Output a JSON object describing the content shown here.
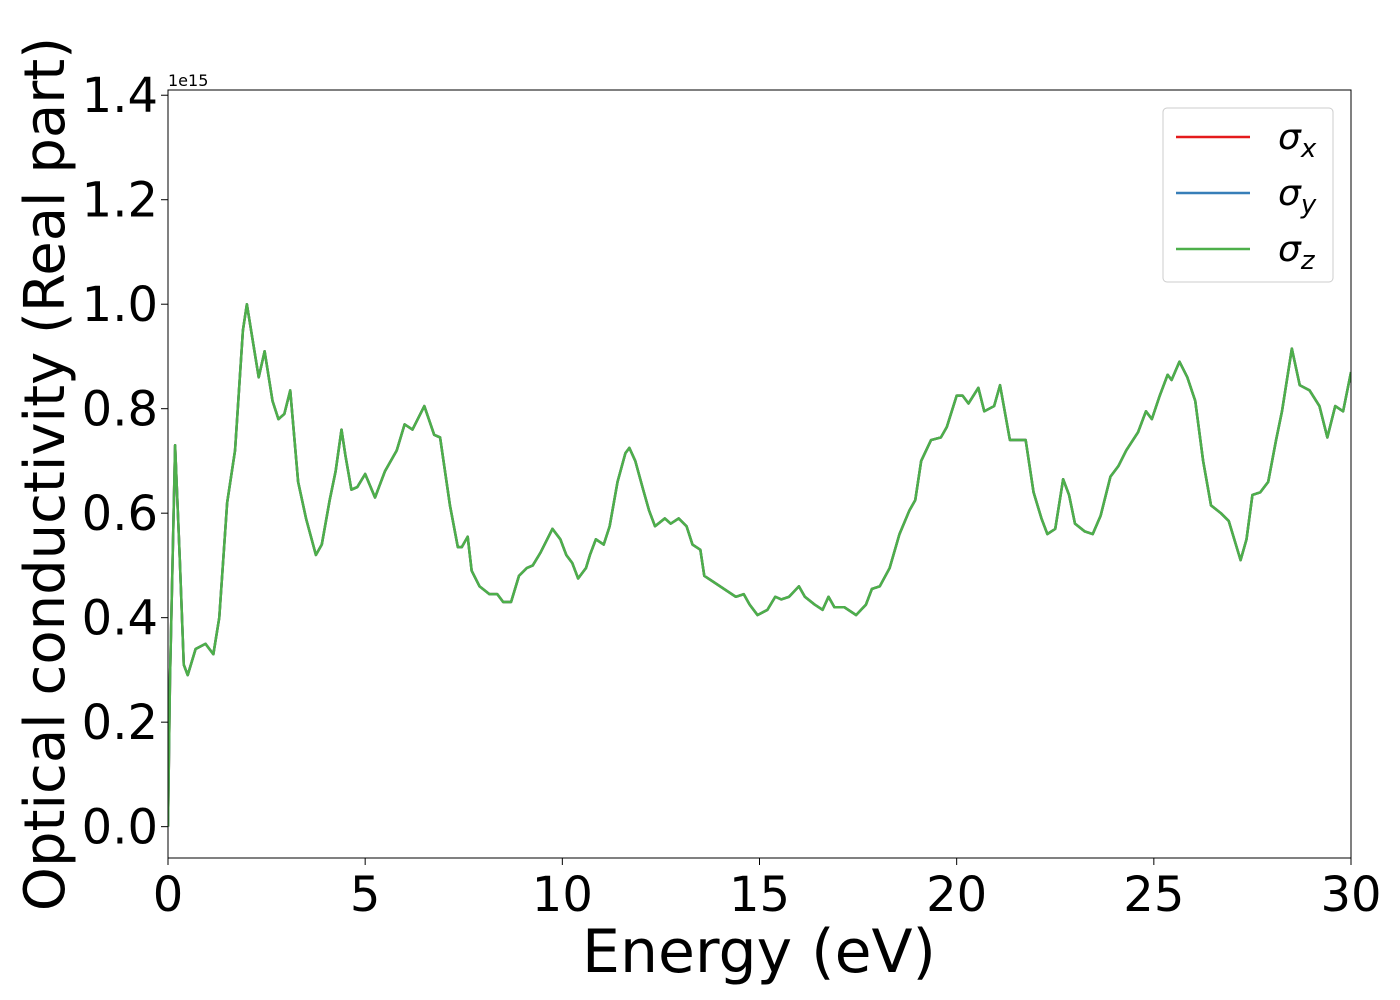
{
  "chart_data": {
    "type": "line",
    "x_label": "Energy (eV)",
    "y_label": "Optical conductivity (Real part)",
    "y_offset_label": "1e15",
    "x": [
      0,
      0.05,
      0.18,
      0.3,
      0.4,
      0.5,
      0.7,
      0.95,
      1.15,
      1.3,
      1.5,
      1.7,
      1.9,
      2.0,
      2.15,
      2.3,
      2.45,
      2.65,
      2.8,
      2.95,
      3.1,
      3.3,
      3.5,
      3.75,
      3.9,
      4.1,
      4.25,
      4.4,
      4.5,
      4.65,
      4.8,
      5.0,
      5.25,
      5.5,
      5.8,
      6.0,
      6.2,
      6.5,
      6.75,
      6.9,
      7.15,
      7.35,
      7.45,
      7.6,
      7.7,
      7.9,
      8.15,
      8.35,
      8.5,
      8.7,
      8.9,
      9.1,
      9.25,
      9.45,
      9.75,
      9.95,
      10.1,
      10.25,
      10.4,
      10.6,
      10.7,
      10.85,
      11.05,
      11.2,
      11.4,
      11.6,
      11.7,
      11.85,
      12.05,
      12.2,
      12.35,
      12.6,
      12.75,
      12.95,
      13.15,
      13.3,
      13.5,
      13.6,
      13.8,
      14.0,
      14.2,
      14.4,
      14.6,
      14.75,
      14.95,
      15.2,
      15.4,
      15.55,
      15.75,
      16.0,
      16.15,
      16.4,
      16.6,
      16.75,
      16.9,
      17.15,
      17.45,
      17.7,
      17.85,
      18.05,
      18.3,
      18.55,
      18.8,
      18.95,
      19.1,
      19.35,
      19.6,
      19.75,
      20.0,
      20.15,
      20.3,
      20.55,
      20.7,
      20.95,
      21.1,
      21.35,
      21.55,
      21.75,
      21.95,
      22.15,
      22.3,
      22.5,
      22.7,
      22.85,
      23.0,
      23.25,
      23.45,
      23.65,
      23.9,
      24.1,
      24.3,
      24.6,
      24.8,
      24.95,
      25.15,
      25.35,
      25.45,
      25.65,
      25.85,
      26.05,
      26.25,
      26.45,
      26.7,
      26.9,
      27.2,
      27.35,
      27.5,
      27.7,
      27.9,
      28.1,
      28.25,
      28.5,
      28.7,
      28.95,
      29.2,
      29.4,
      29.6,
      29.8,
      30.0
    ],
    "series": [
      {
        "name": "σx",
        "color": "#e41a1c",
        "values": [
          0,
          0.28,
          0.73,
          0.51,
          0.31,
          0.29,
          0.34,
          0.35,
          0.33,
          0.4,
          0.62,
          0.72,
          0.95,
          1.0,
          0.93,
          0.86,
          0.91,
          0.815,
          0.78,
          0.79,
          0.835,
          0.66,
          0.59,
          0.52,
          0.54,
          0.625,
          0.68,
          0.76,
          0.71,
          0.645,
          0.65,
          0.675,
          0.63,
          0.68,
          0.72,
          0.77,
          0.76,
          0.805,
          0.75,
          0.745,
          0.615,
          0.535,
          0.535,
          0.555,
          0.49,
          0.46,
          0.445,
          0.445,
          0.43,
          0.43,
          0.48,
          0.495,
          0.5,
          0.525,
          0.57,
          0.55,
          0.52,
          0.505,
          0.475,
          0.495,
          0.52,
          0.55,
          0.54,
          0.575,
          0.66,
          0.715,
          0.725,
          0.7,
          0.645,
          0.605,
          0.575,
          0.59,
          0.58,
          0.59,
          0.575,
          0.54,
          0.53,
          0.48,
          0.47,
          0.46,
          0.45,
          0.44,
          0.445,
          0.425,
          0.405,
          0.415,
          0.44,
          0.435,
          0.44,
          0.46,
          0.44,
          0.425,
          0.415,
          0.44,
          0.42,
          0.42,
          0.405,
          0.425,
          0.455,
          0.46,
          0.495,
          0.56,
          0.605,
          0.625,
          0.7,
          0.74,
          0.745,
          0.765,
          0.825,
          0.825,
          0.81,
          0.84,
          0.795,
          0.805,
          0.845,
          0.74,
          0.74,
          0.74,
          0.64,
          0.59,
          0.56,
          0.57,
          0.665,
          0.635,
          0.58,
          0.565,
          0.56,
          0.595,
          0.67,
          0.69,
          0.72,
          0.755,
          0.795,
          0.78,
          0.825,
          0.865,
          0.855,
          0.89,
          0.86,
          0.815,
          0.7,
          0.615,
          0.6,
          0.585,
          0.51,
          0.55,
          0.635,
          0.64,
          0.66,
          0.74,
          0.795,
          0.915,
          0.845,
          0.835,
          0.805,
          0.745,
          0.805,
          0.795,
          0.87
        ]
      },
      {
        "name": "σy",
        "color": "#377eb8",
        "values": [
          0,
          0.28,
          0.73,
          0.51,
          0.31,
          0.29,
          0.34,
          0.35,
          0.33,
          0.4,
          0.62,
          0.72,
          0.95,
          1.0,
          0.93,
          0.86,
          0.91,
          0.815,
          0.78,
          0.79,
          0.835,
          0.66,
          0.59,
          0.52,
          0.54,
          0.625,
          0.68,
          0.76,
          0.71,
          0.645,
          0.65,
          0.675,
          0.63,
          0.68,
          0.72,
          0.77,
          0.76,
          0.805,
          0.75,
          0.745,
          0.615,
          0.535,
          0.535,
          0.555,
          0.49,
          0.46,
          0.445,
          0.445,
          0.43,
          0.43,
          0.48,
          0.495,
          0.5,
          0.525,
          0.57,
          0.55,
          0.52,
          0.505,
          0.475,
          0.495,
          0.52,
          0.55,
          0.54,
          0.575,
          0.66,
          0.715,
          0.725,
          0.7,
          0.645,
          0.605,
          0.575,
          0.59,
          0.58,
          0.59,
          0.575,
          0.54,
          0.53,
          0.48,
          0.47,
          0.46,
          0.45,
          0.44,
          0.445,
          0.425,
          0.405,
          0.415,
          0.44,
          0.435,
          0.44,
          0.46,
          0.44,
          0.425,
          0.415,
          0.44,
          0.42,
          0.42,
          0.405,
          0.425,
          0.455,
          0.46,
          0.495,
          0.56,
          0.605,
          0.625,
          0.7,
          0.74,
          0.745,
          0.765,
          0.825,
          0.825,
          0.81,
          0.84,
          0.795,
          0.805,
          0.845,
          0.74,
          0.74,
          0.74,
          0.64,
          0.59,
          0.56,
          0.57,
          0.665,
          0.635,
          0.58,
          0.565,
          0.56,
          0.595,
          0.67,
          0.69,
          0.72,
          0.755,
          0.795,
          0.78,
          0.825,
          0.865,
          0.855,
          0.89,
          0.86,
          0.815,
          0.7,
          0.615,
          0.6,
          0.585,
          0.51,
          0.55,
          0.635,
          0.64,
          0.66,
          0.74,
          0.795,
          0.915,
          0.845,
          0.835,
          0.805,
          0.745,
          0.805,
          0.795,
          0.87
        ]
      },
      {
        "name": "σz",
        "color": "#4daf4a",
        "values": [
          0,
          0.28,
          0.73,
          0.51,
          0.31,
          0.29,
          0.34,
          0.35,
          0.33,
          0.4,
          0.62,
          0.72,
          0.95,
          1.0,
          0.93,
          0.86,
          0.91,
          0.815,
          0.78,
          0.79,
          0.835,
          0.66,
          0.59,
          0.52,
          0.54,
          0.625,
          0.68,
          0.76,
          0.71,
          0.645,
          0.65,
          0.675,
          0.63,
          0.68,
          0.72,
          0.77,
          0.76,
          0.805,
          0.75,
          0.745,
          0.615,
          0.535,
          0.535,
          0.555,
          0.49,
          0.46,
          0.445,
          0.445,
          0.43,
          0.43,
          0.48,
          0.495,
          0.5,
          0.525,
          0.57,
          0.55,
          0.52,
          0.505,
          0.475,
          0.495,
          0.52,
          0.55,
          0.54,
          0.575,
          0.66,
          0.715,
          0.725,
          0.7,
          0.645,
          0.605,
          0.575,
          0.59,
          0.58,
          0.59,
          0.575,
          0.54,
          0.53,
          0.48,
          0.47,
          0.46,
          0.45,
          0.44,
          0.445,
          0.425,
          0.405,
          0.415,
          0.44,
          0.435,
          0.44,
          0.46,
          0.44,
          0.425,
          0.415,
          0.44,
          0.42,
          0.42,
          0.405,
          0.425,
          0.455,
          0.46,
          0.495,
          0.56,
          0.605,
          0.625,
          0.7,
          0.74,
          0.745,
          0.765,
          0.825,
          0.825,
          0.81,
          0.84,
          0.795,
          0.805,
          0.845,
          0.74,
          0.74,
          0.74,
          0.64,
          0.59,
          0.56,
          0.57,
          0.665,
          0.635,
          0.58,
          0.565,
          0.56,
          0.595,
          0.67,
          0.69,
          0.72,
          0.755,
          0.795,
          0.78,
          0.825,
          0.865,
          0.855,
          0.89,
          0.86,
          0.815,
          0.7,
          0.615,
          0.6,
          0.585,
          0.51,
          0.55,
          0.635,
          0.64,
          0.66,
          0.74,
          0.795,
          0.915,
          0.845,
          0.835,
          0.805,
          0.745,
          0.805,
          0.795,
          0.87
        ]
      }
    ],
    "xlim": [
      0,
      30
    ],
    "xticks": [
      0,
      5,
      10,
      15,
      20,
      25,
      30
    ],
    "ylim": [
      -0.06,
      1.41
    ],
    "yticks": [
      {
        "value": 0,
        "label": "0.0"
      },
      0.2,
      0.4,
      0.6,
      0.8,
      {
        "value": 1,
        "label": "1.0"
      },
      1.2,
      1.4
    ],
    "grid": false,
    "legend": "upper right"
  }
}
